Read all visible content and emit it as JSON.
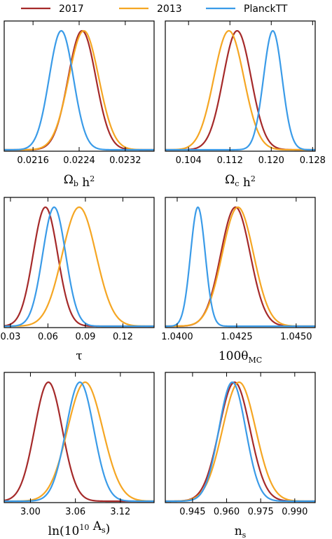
{
  "legend": {
    "placement": "top",
    "entries": [
      {
        "label": "2017",
        "color": "#a52a2a"
      },
      {
        "label": "2013",
        "color": "#f5a623"
      },
      {
        "label": "PlanckTT",
        "color": "#3a9be8"
      }
    ]
  },
  "chart_data": [
    {
      "type": "line",
      "xlabel": "Ω_b h^2",
      "xlim": [
        0.0211,
        0.0237
      ],
      "ticks": [
        0.0216,
        0.0224,
        0.0232
      ],
      "tick_labels": [
        "0.0216",
        "0.0224",
        "0.0232"
      ],
      "series": [
        {
          "name": "2017",
          "mean": 0.02245,
          "sigma": 0.00024
        },
        {
          "name": "2013",
          "mean": 0.02248,
          "sigma": 0.00026
        },
        {
          "name": "PlanckTT",
          "mean": 0.02209,
          "sigma": 0.00021
        }
      ]
    },
    {
      "type": "line",
      "xlabel": "Ω_c h^2",
      "xlim": [
        0.0995,
        0.1285
      ],
      "ticks": [
        0.104,
        0.112,
        0.12,
        0.128
      ],
      "tick_labels": [
        "0.104",
        "0.112",
        "0.120",
        "0.128"
      ],
      "series": [
        {
          "name": "2017",
          "mean": 0.1134,
          "sigma": 0.0027
        },
        {
          "name": "2013",
          "mean": 0.1118,
          "sigma": 0.0029
        },
        {
          "name": "PlanckTT",
          "mean": 0.1203,
          "sigma": 0.0018
        }
      ]
    },
    {
      "type": "line",
      "xlabel": "τ",
      "xlim": [
        0.025,
        0.145
      ],
      "ticks": [
        0.03,
        0.06,
        0.09,
        0.12
      ],
      "tick_labels": [
        "0.03",
        "0.06",
        "0.09",
        "0.12"
      ],
      "series": [
        {
          "name": "2017",
          "mean": 0.058,
          "sigma": 0.0098
        },
        {
          "name": "2013",
          "mean": 0.085,
          "sigma": 0.0135
        },
        {
          "name": "PlanckTT",
          "mean": 0.065,
          "sigma": 0.0092
        }
      ]
    },
    {
      "type": "line",
      "xlabel": "100θ_MC",
      "xlim": [
        1.0395,
        1.0458
      ],
      "ticks": [
        1.04,
        1.0425,
        1.045
      ],
      "tick_labels": [
        "1.0400",
        "1.0425",
        "1.0450"
      ],
      "series": [
        {
          "name": "2017",
          "mean": 1.04245,
          "sigma": 0.00062
        },
        {
          "name": "2013",
          "mean": 1.04255,
          "sigma": 0.00066
        },
        {
          "name": "PlanckTT",
          "mean": 1.04087,
          "sigma": 0.00031
        }
      ]
    },
    {
      "type": "line",
      "xlabel": "ln(10^10 A_s)",
      "xlim": [
        2.965,
        3.165
      ],
      "ticks": [
        3.0,
        3.06,
        3.12
      ],
      "tick_labels": [
        "3.00",
        "3.06",
        "3.12"
      ],
      "series": [
        {
          "name": "2017",
          "mean": 3.024,
          "sigma": 0.0185
        },
        {
          "name": "2013",
          "mean": 3.073,
          "sigma": 0.0235
        },
        {
          "name": "PlanckTT",
          "mean": 3.066,
          "sigma": 0.0185
        }
      ]
    },
    {
      "type": "line",
      "xlabel": "n_s",
      "xlim": [
        0.933,
        0.999
      ],
      "ticks": [
        0.945,
        0.96,
        0.975,
        0.99
      ],
      "tick_labels": [
        "0.945",
        "0.960",
        "0.975",
        "0.990"
      ],
      "series": [
        {
          "name": "2017",
          "mean": 0.9635,
          "sigma": 0.0068
        },
        {
          "name": "2013",
          "mean": 0.9655,
          "sigma": 0.0073
        },
        {
          "name": "PlanckTT",
          "mean": 0.9625,
          "sigma": 0.0059
        }
      ]
    }
  ]
}
